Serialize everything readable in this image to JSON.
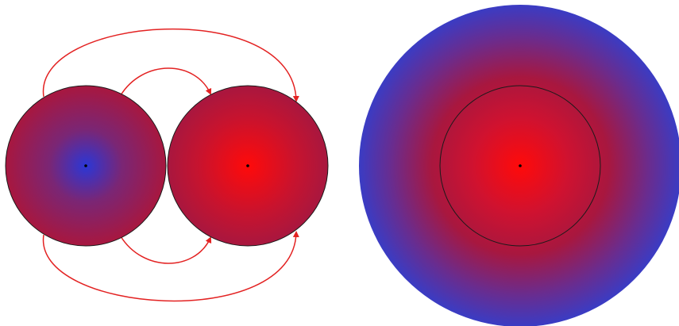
{
  "colors": {
    "background": "#ffffff",
    "red_core": "#ff0a0a",
    "magenta_mid": "#a8173f",
    "blue_edge": "#3a3cc4",
    "blue_core": "#2b37d6",
    "arrow": "#e32222",
    "outline": "#1a1a1a"
  },
  "diagram": {
    "left_figure": {
      "sphere_left": {
        "core_color": "blue"
      },
      "sphere_right": {
        "core_color": "red"
      },
      "arrows": 4
    },
    "right_figure": {
      "outer_disc": {
        "edge_color": "blue"
      },
      "inner_circle": {
        "core_color": "red"
      }
    }
  }
}
